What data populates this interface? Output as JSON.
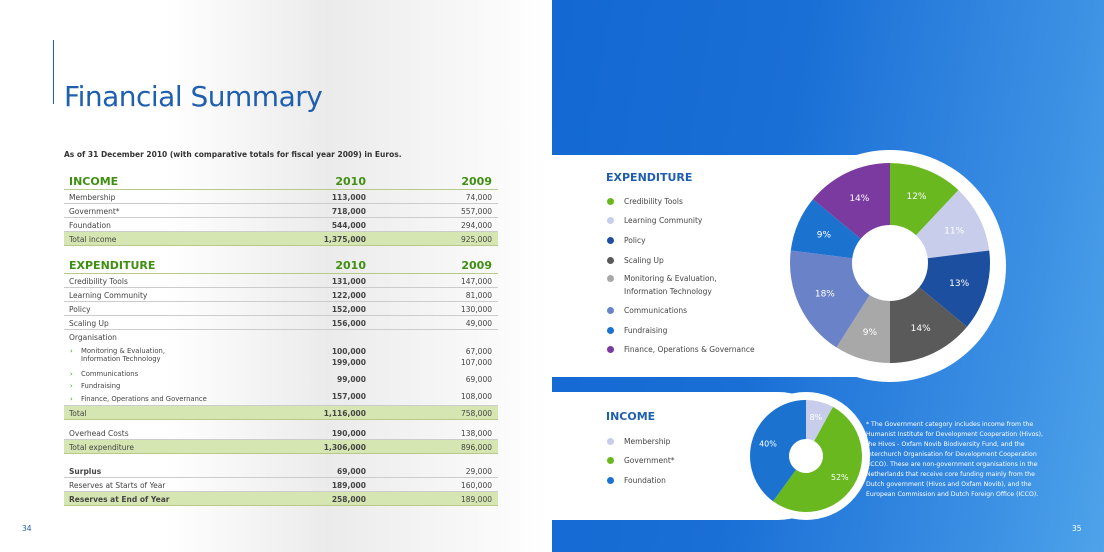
{
  "left": {
    "title": "Financial Summary",
    "intro": "As of 31 December 2010 (with comparative totals for fiscal year 2009) in Euros.",
    "page_number": "34",
    "income": {
      "heading": "INCOME",
      "col2010": "2010",
      "col2009": "2009",
      "rows": [
        {
          "label": "Membership",
          "v2010": "113,000",
          "v2009": "74,000"
        },
        {
          "label": "Government*",
          "v2010": "718,000",
          "v2009": "557,000"
        },
        {
          "label": "Foundation",
          "v2010": "544,000",
          "v2009": "294,000"
        }
      ],
      "total": {
        "label": "Total income",
        "v2010": "1,375,000",
        "v2009": "925,000"
      }
    },
    "expenditure": {
      "heading": "EXPENDITURE",
      "col2010": "2010",
      "col2009": "2009",
      "rows": [
        {
          "label": "Credibility Tools",
          "v2010": "131,000",
          "v2009": "147,000"
        },
        {
          "label": "Learning Community",
          "v2010": "122,000",
          "v2009": "81,000"
        },
        {
          "label": "Policy",
          "v2010": "152,000",
          "v2009": "130,000"
        },
        {
          "label": "Scaling Up",
          "v2010": "156,000",
          "v2009": "49,000"
        }
      ],
      "organisation_label": "Organisation",
      "organisation": [
        {
          "label": "Monitoring & Evaluation,",
          "label2": "Information Technology",
          "v2010": "100,000",
          "v2009": "67,000",
          "v2010b": "199,000",
          "v2009b": "107,000"
        },
        {
          "label": "Communications",
          "v2010": "99,000",
          "v2009": "69,000"
        },
        {
          "label": "Fundraising"
        },
        {
          "label": "Finance, Operations and Governance",
          "v2010": "157,000",
          "v2009": "108,000"
        }
      ],
      "total": {
        "label": "Total",
        "v2010": "1,116,000",
        "v2009": "758,000"
      },
      "overhead": {
        "label": "Overhead Costs",
        "v2010": "190,000",
        "v2009": "138,000"
      },
      "total_exp": {
        "label": "Total expenditure",
        "v2010": "1,306,000",
        "v2009": "896,000"
      }
    },
    "surplus": {
      "label": "Surplus",
      "v2010": "69,000",
      "v2009": "29,000"
    },
    "reserves_start": {
      "label": "Reserves at Starts of Year",
      "v2010": "189,000",
      "v2009": "160,000"
    },
    "reserves_end": {
      "label": "Reserves at End of Year",
      "v2010": "258,000",
      "v2009": "189,000"
    }
  },
  "right": {
    "page_number": "35",
    "expenditure_title": "EXPENDITURE",
    "expenditure_legend": [
      {
        "label": "Credibility Tools",
        "color": "#6ab81f"
      },
      {
        "label": "Learning Community",
        "color": "#c7cdea"
      },
      {
        "label": "Policy",
        "color": "#1d4fa0"
      },
      {
        "label": "Scaling Up",
        "color": "#5a5a5a"
      },
      {
        "label": "Monitoring & Evaluation,",
        "label2": "Information Technology",
        "color": "#a8a8a8"
      },
      {
        "label": "Communications",
        "color": "#6a82c8"
      },
      {
        "label": "Fundraising",
        "color": "#1b73cf"
      },
      {
        "label": "Finance, Operations & Governance",
        "color": "#7a3aa0"
      }
    ],
    "income_title": "INCOME",
    "income_legend": [
      {
        "label": "Membership",
        "color": "#c7cdea"
      },
      {
        "label": "Government*",
        "color": "#6ab81f"
      },
      {
        "label": "Foundation",
        "color": "#1b73cf"
      }
    ],
    "footnote": "* The Government category includes income from the Humanist Institute for Development Cooperation (Hivos), the Hivos - Oxfam Novib Biodiversity Fund, and the Interchurch Organisation for Development Cooperation (ICCO). These are non-government organisations in the Netherlands that receive core funding mainly from the Dutch government (Hivos and Oxfam Novib), and the European Commission and Dutch Foreign Office (ICCO)."
  },
  "chart_data": [
    {
      "type": "pie",
      "title": "EXPENDITURE",
      "labels": [
        "Credibility Tools",
        "Learning Community",
        "Policy",
        "Scaling Up",
        "Monitoring & Evaluation, Information Technology",
        "Communications",
        "Fundraising",
        "Finance, Operations & Governance"
      ],
      "values": [
        12,
        11,
        13,
        14,
        9,
        18,
        9,
        14
      ],
      "value_labels": [
        "12%",
        "11%",
        "13%",
        "14%",
        "9%",
        "18%",
        "9%",
        "14%"
      ],
      "colors": [
        "#6ab81f",
        "#c7cdea",
        "#1d4fa0",
        "#5a5a5a",
        "#a8a8a8",
        "#6a82c8",
        "#1b73cf",
        "#7a3aa0"
      ]
    },
    {
      "type": "pie",
      "title": "INCOME",
      "labels": [
        "Membership",
        "Government*",
        "Foundation"
      ],
      "values": [
        8,
        52,
        40
      ],
      "value_labels": [
        "8%",
        "52%",
        "40%"
      ],
      "colors": [
        "#c7cdea",
        "#6ab81f",
        "#1b73cf"
      ]
    }
  ]
}
